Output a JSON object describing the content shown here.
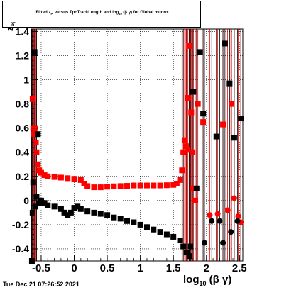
{
  "title": {
    "part1": "Fitted  z",
    "sub1": "Pi",
    "part2": "  versus TpcTrackLength and log",
    "sub2": "10",
    "part3": " (β γ) for Global muon+"
  },
  "timestamp": "Tue Dec 21 07:26:52 2021",
  "axes": {
    "xlabel_main": "log",
    "xlabel_sub": "10",
    "xlabel_rest": " (β γ)",
    "ylabel_main": "z",
    "ylabel_sub": "Pi"
  },
  "chart_data": {
    "type": "scatter",
    "xlim": [
      -0.65,
      2.55
    ],
    "ylim": [
      -0.5,
      1.42
    ],
    "xticks": [
      -0.5,
      0,
      0.5,
      1,
      1.5,
      2,
      2.5
    ],
    "xtick_labels": [
      "-0.5",
      "0",
      "0.5",
      "1",
      "1.5",
      "2",
      "2.5"
    ],
    "yticks": [
      -0.4,
      -0.2,
      0,
      0.2,
      0.4,
      0.6,
      0.8,
      1,
      1.2,
      1.4
    ],
    "ytick_labels": [
      "-0.4",
      "-0.2",
      "0",
      "0.2",
      "0.4",
      "0.6",
      "0.8",
      "1",
      "1.2",
      "1.4"
    ],
    "grid": true,
    "series": [
      {
        "color": "#ff0000",
        "marker": "square",
        "points": [
          [
            -0.63,
            0.84
          ],
          [
            -0.62,
            0.6
          ],
          [
            -0.61,
            0.55
          ],
          [
            -0.59,
            0.6
          ],
          [
            -0.58,
            0.48
          ],
          [
            -0.57,
            0.4
          ],
          [
            -0.55,
            0.3
          ],
          [
            -0.53,
            0.25
          ],
          [
            -0.5,
            0.23
          ],
          [
            -0.45,
            0.21
          ],
          [
            -0.4,
            0.2
          ],
          [
            -0.3,
            0.195
          ],
          [
            -0.2,
            0.19
          ],
          [
            -0.1,
            0.185
          ],
          [
            0.0,
            0.18
          ],
          [
            0.1,
            0.17
          ],
          [
            0.15,
            0.14
          ],
          [
            0.2,
            0.12
          ],
          [
            0.3,
            0.11
          ],
          [
            0.4,
            0.11
          ],
          [
            0.5,
            0.115
          ],
          [
            0.6,
            0.118
          ],
          [
            0.7,
            0.12
          ],
          [
            0.8,
            0.122
          ],
          [
            0.9,
            0.125
          ],
          [
            1.0,
            0.125
          ],
          [
            1.1,
            0.125
          ],
          [
            1.2,
            0.125
          ],
          [
            1.3,
            0.125
          ],
          [
            1.4,
            0.127
          ],
          [
            1.5,
            0.13
          ],
          [
            1.55,
            0.14
          ],
          [
            1.6,
            0.17
          ],
          [
            1.63,
            0.25
          ],
          [
            1.65,
            0.4
          ],
          [
            1.67,
            0.5
          ],
          [
            1.69,
            0.45
          ],
          [
            1.71,
            0.42
          ],
          [
            1.72,
            0.85
          ],
          [
            1.74,
            1.28
          ],
          [
            1.77,
            0.73
          ],
          [
            1.79,
            0.4
          ],
          [
            1.8,
            0.1
          ],
          [
            1.83,
            0.0
          ],
          [
            1.87,
            0.8
          ],
          [
            1.95,
            0.65
          ],
          [
            2.05,
            -0.12
          ],
          [
            2.17,
            -0.11
          ],
          [
            2.25,
            0.63
          ],
          [
            2.32,
            -0.08
          ],
          [
            2.38,
            0.8
          ],
          [
            2.42,
            0.02
          ],
          [
            2.48,
            -0.13
          ],
          [
            2.52,
            -0.18
          ]
        ]
      },
      {
        "color": "#000000",
        "marker": "square",
        "points": [
          [
            -0.64,
            -0.5
          ],
          [
            -0.63,
            -0.1
          ],
          [
            -0.62,
            0.15
          ],
          [
            -0.6,
            1.23
          ],
          [
            -0.59,
            -0.05
          ],
          [
            -0.57,
            0.03
          ],
          [
            -0.55,
            0.55
          ],
          [
            -0.53,
            -0.02
          ],
          [
            -0.5,
            0.0
          ],
          [
            -0.45,
            -0.02
          ],
          [
            -0.4,
            -0.04
          ],
          [
            -0.3,
            -0.05
          ],
          [
            -0.2,
            -0.07
          ],
          [
            -0.15,
            -0.1
          ],
          [
            -0.1,
            -0.12
          ],
          [
            -0.05,
            -0.1
          ],
          [
            0.0,
            -0.06
          ],
          [
            0.05,
            -0.05
          ],
          [
            0.1,
            -0.07
          ],
          [
            0.2,
            -0.09
          ],
          [
            0.3,
            -0.1
          ],
          [
            0.4,
            -0.11
          ],
          [
            0.5,
            -0.12
          ],
          [
            0.6,
            -0.14
          ],
          [
            0.7,
            -0.15
          ],
          [
            0.8,
            -0.17
          ],
          [
            0.9,
            -0.18
          ],
          [
            1.0,
            -0.2
          ],
          [
            1.1,
            -0.22
          ],
          [
            1.2,
            -0.24
          ],
          [
            1.3,
            -0.26
          ],
          [
            1.4,
            -0.28
          ],
          [
            1.5,
            -0.3
          ],
          [
            1.6,
            -0.33
          ],
          [
            1.65,
            -0.38
          ],
          [
            1.7,
            -0.43
          ],
          [
            1.74,
            -0.46
          ],
          [
            1.76,
            -0.38
          ],
          [
            1.8,
            0.9
          ],
          [
            1.85,
            0.1
          ],
          [
            1.9,
            1.23
          ],
          [
            1.95,
            0.72
          ],
          [
            1.97,
            -0.35
          ],
          [
            2.08,
            -0.17
          ],
          [
            2.15,
            0.53
          ],
          [
            2.2,
            -0.17
          ],
          [
            2.25,
            -0.35
          ],
          [
            2.28,
            1.3
          ],
          [
            2.35,
            0.97
          ],
          [
            2.37,
            -0.26
          ],
          [
            2.42,
            0.52
          ],
          [
            2.47,
            -0.17
          ],
          [
            2.52,
            0.68
          ]
        ]
      }
    ]
  }
}
